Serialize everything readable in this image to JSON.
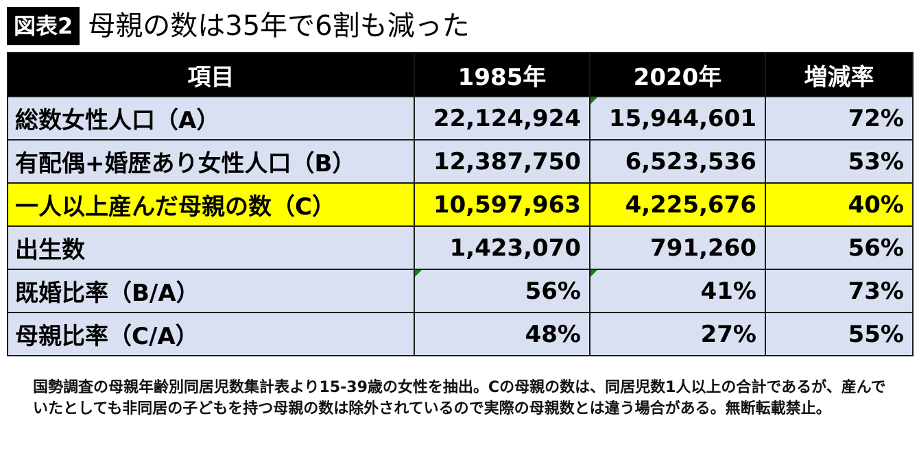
{
  "header": {
    "badge": "図表2",
    "title": "母親の数は35年で6割も減った"
  },
  "chart_data": {
    "type": "table",
    "columns": [
      "項目",
      "1985年",
      "2020年",
      "増減率"
    ],
    "rows": [
      {
        "label": "総数女性人口（A）",
        "v1985": "22,124,924",
        "v2020": "15,944,601",
        "rate": "72%",
        "highlight": false
      },
      {
        "label": "有配偶+婚歴あり女性人口（B）",
        "v1985": "12,387,750",
        "v2020": "6,523,536",
        "rate": "53%",
        "highlight": false
      },
      {
        "label": "一人以上産んだ母親の数（C）",
        "v1985": "10,597,963",
        "v2020": "4,225,676",
        "rate": "40%",
        "highlight": true
      },
      {
        "label": "出生数",
        "v1985": "1,423,070",
        "v2020": "791,260",
        "rate": "56%",
        "highlight": false
      },
      {
        "label": "既婚比率（B/A）",
        "v1985": "56%",
        "v2020": "41%",
        "rate": "73%",
        "highlight": false
      },
      {
        "label": "母親比率（C/A）",
        "v1985": "48%",
        "v2020": "27%",
        "rate": "55%",
        "highlight": false
      }
    ]
  },
  "colors": {
    "header_bg": "#000000",
    "row_bg": "#d9e0f1",
    "highlight_bg": "#ffff00",
    "flag": "#1a7a1a"
  },
  "note": "国勢調査の母親年齢別同居児数集計表より15-39歳の女性を抽出。Cの母親の数は、同居児数1人以上の合計であるが、産んでいたとしても非同居の子どもを持つ母親の数は除外されているので実際の母親数とは違う場合がある。無断転載禁止。"
}
